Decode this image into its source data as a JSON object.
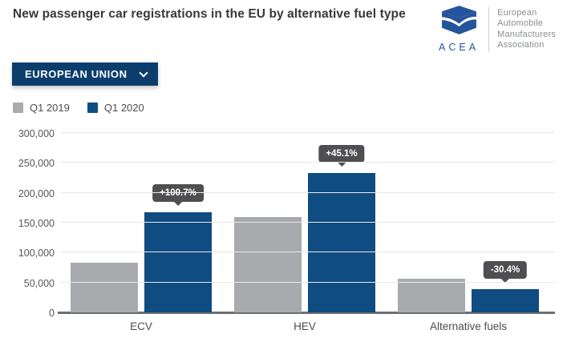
{
  "header": {
    "title": "New passenger car registrations in the EU by alternative fuel type",
    "logo": {
      "acronym": "ACEA",
      "org_lines": [
        "European",
        "Automobile",
        "Manufacturers",
        "Association"
      ]
    }
  },
  "controls": {
    "region_dropdown": {
      "value": "EUROPEAN UNION"
    }
  },
  "chart_data": {
    "type": "bar",
    "title": "New passenger car registrations in the EU by alternative fuel type",
    "categories": [
      "ECV",
      "HEV",
      "Alternative fuels"
    ],
    "series": [
      {
        "name": "Q1 2019",
        "color": "#a8aaad",
        "values": [
          83000,
          160000,
          56000
        ]
      },
      {
        "name": "Q1 2020",
        "color": "#0f4c81",
        "values": [
          167000,
          233000,
          39000
        ]
      }
    ],
    "change_labels": {
      "on_series": "Q1 2020",
      "values": [
        "+100.7%",
        "+45.1%",
        "-30.4%"
      ]
    },
    "xlabel": "",
    "ylabel": "",
    "ylim": [
      0,
      300000
    ],
    "yticks": [
      0,
      50000,
      100000,
      150000,
      200000,
      250000,
      300000
    ],
    "ytick_labels": [
      "0",
      "50,000",
      "100,000",
      "150,000",
      "200,000",
      "250,000",
      "300,000"
    ],
    "grid": true,
    "legend_position": "top-left"
  },
  "colors": {
    "bar_2019_gray": "#a8aaad",
    "bar_2020_navy": "#0f4c81",
    "dropdown_navy": "#0c3e6d",
    "logo_blue": "#24549c",
    "callout_bg": "#4f4f51",
    "axis_line": "#6d6e71",
    "gridline": "#e8e8e8"
  }
}
